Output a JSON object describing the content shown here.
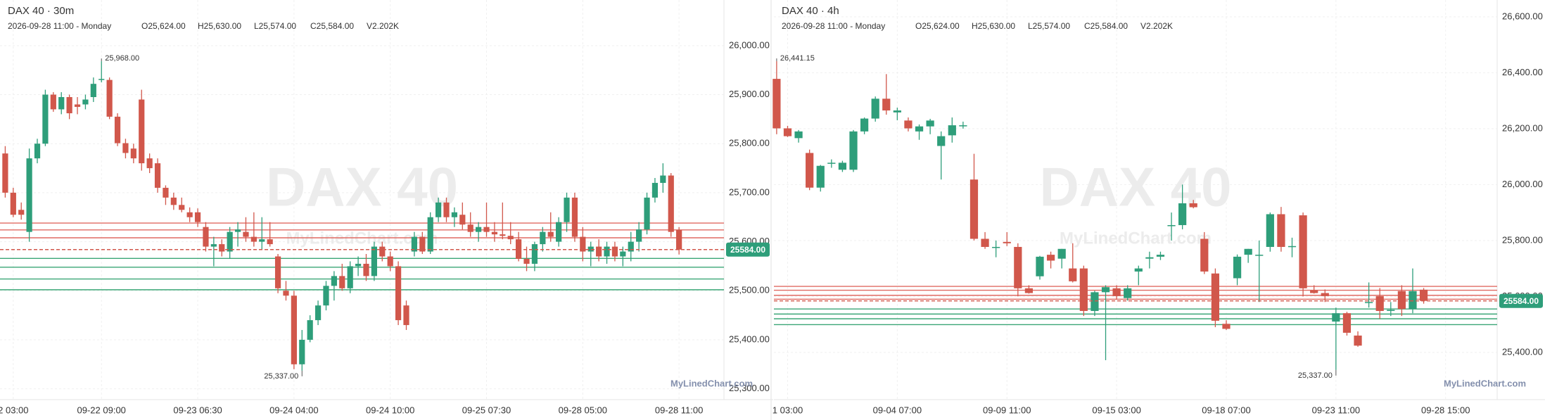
{
  "chart_data": [
    {
      "type": "candlestick",
      "title": "DAX 40 · 30m",
      "info": [
        "2026-09-28 11:00 - Monday",
        "O25,624.00",
        "H25,630.00",
        "L25,574.00",
        "C25,584.00",
        "V2.202K"
      ],
      "watermark": [
        "DAX 40",
        "MyLinedChart.com"
      ],
      "brand": "MyLinedChart.com",
      "up_color": "#2e9e7a",
      "down_color": "#d1574b",
      "xlim": [
        -0.65,
        89.6
      ],
      "ylim": [
        25278,
        26093
      ],
      "xticks": [
        {
          "value": 1,
          "label": "2 03:00"
        },
        {
          "value": 12,
          "label": "09-22 09:00"
        },
        {
          "value": 24,
          "label": "09-23 06:30"
        },
        {
          "value": 36,
          "label": "09-24 04:00"
        },
        {
          "value": 48,
          "label": "09-24 10:00"
        },
        {
          "value": 60,
          "label": "09-25 07:30"
        },
        {
          "value": 72,
          "label": "09-28 05:00"
        },
        {
          "value": 84,
          "label": "09-28 11:00"
        }
      ],
      "yticks": [
        {
          "value": 25300,
          "label": "25,300.00"
        },
        {
          "value": 25400,
          "label": "25,400.00"
        },
        {
          "value": 25500,
          "label": "25,500.00"
        },
        {
          "value": 25600,
          "label": "25,600.00"
        },
        {
          "value": 25700,
          "label": "25,700.00"
        },
        {
          "value": 25800,
          "label": "25,800.00"
        },
        {
          "value": 25900,
          "label": "25,900.00"
        },
        {
          "value": 26000,
          "label": "26,000.00"
        }
      ],
      "grid": true,
      "resistance": [
        25638,
        25624,
        25608
      ],
      "resistance_color": "#e06a62",
      "support": [
        25566,
        25548,
        25524,
        25502
      ],
      "support_color": "#3aa676",
      "last_price": {
        "value": 25584,
        "label": "25584.00"
      },
      "annotations": [
        {
          "candle": 12,
          "value": 25968,
          "label": "25,968.00"
        },
        {
          "candle": 37,
          "value": 25337,
          "label": "25,337.00"
        }
      ],
      "ohlc": [
        [
          25780,
          25795,
          25690,
          25700
        ],
        [
          25700,
          25710,
          25650,
          25655
        ],
        [
          25665,
          25680,
          25645,
          25655
        ],
        [
          25620,
          25790,
          25600,
          25770
        ],
        [
          25770,
          25810,
          25760,
          25800
        ],
        [
          25800,
          25910,
          25795,
          25900
        ],
        [
          25900,
          25905,
          25865,
          25870
        ],
        [
          25870,
          25905,
          25860,
          25895
        ],
        [
          25895,
          25900,
          25850,
          25862
        ],
        [
          25880,
          25895,
          25860,
          25875
        ],
        [
          25880,
          25900,
          25870,
          25890
        ],
        [
          25895,
          25935,
          25885,
          25922
        ],
        [
          25930,
          25968,
          25925,
          25932
        ],
        [
          25930,
          25935,
          25850,
          25855
        ],
        [
          25855,
          25862,
          25795,
          25801
        ],
        [
          25801,
          25810,
          25770,
          25781
        ],
        [
          25790,
          25800,
          25760,
          25770
        ],
        [
          25890,
          25910,
          25745,
          25760
        ],
        [
          25770,
          25780,
          25740,
          25750
        ],
        [
          25760,
          25770,
          25700,
          25710
        ],
        [
          25710,
          25715,
          25675,
          25690
        ],
        [
          25690,
          25700,
          25665,
          25675
        ],
        [
          25675,
          25690,
          25660,
          25665
        ],
        [
          25660,
          25670,
          25640,
          25650
        ],
        [
          25660,
          25668,
          25630,
          25640
        ],
        [
          25630,
          25640,
          25580,
          25590
        ],
        [
          25590,
          25610,
          25550,
          25595
        ],
        [
          25595,
          25605,
          25570,
          25580
        ],
        [
          25580,
          25630,
          25565,
          25620
        ],
        [
          25620,
          25640,
          25590,
          25625
        ],
        [
          25620,
          25650,
          25600,
          25610
        ],
        [
          25610,
          25660,
          25590,
          25600
        ],
        [
          25600,
          25650,
          25585,
          25605
        ],
        [
          25605,
          25640,
          25590,
          25595
        ],
        [
          25570,
          25575,
          25495,
          25505
        ],
        [
          25500,
          25520,
          25480,
          25490
        ],
        [
          25490,
          25500,
          25340,
          25350
        ],
        [
          25350,
          25420,
          25337,
          25400
        ],
        [
          25400,
          25450,
          25395,
          25440
        ],
        [
          25440,
          25480,
          25430,
          25470
        ],
        [
          25470,
          25520,
          25460,
          25510
        ],
        [
          25510,
          25540,
          25480,
          25530
        ],
        [
          25530,
          25555,
          25500,
          25505
        ],
        [
          25505,
          25560,
          25495,
          25550
        ],
        [
          25550,
          25570,
          25530,
          25555
        ],
        [
          25555,
          25575,
          25520,
          25530
        ],
        [
          25530,
          25600,
          25520,
          25590
        ],
        [
          25590,
          25600,
          25560,
          25570
        ],
        [
          25570,
          25580,
          25540,
          25550
        ],
        [
          25550,
          25560,
          25430,
          25440
        ],
        [
          25470,
          25480,
          25420,
          25430
        ],
        [
          25580,
          25620,
          25570,
          25610
        ],
        [
          25610,
          25620,
          25575,
          25580
        ],
        [
          25580,
          25660,
          25575,
          25650
        ],
        [
          25650,
          25690,
          25640,
          25680
        ],
        [
          25680,
          25690,
          25640,
          25650
        ],
        [
          25650,
          25670,
          25630,
          25660
        ],
        [
          25655,
          25680,
          25625,
          25635
        ],
        [
          25635,
          25660,
          25610,
          25620
        ],
        [
          25620,
          25640,
          25600,
          25630
        ],
        [
          25630,
          25680,
          25610,
          25620
        ],
        [
          25620,
          25640,
          25600,
          25615
        ],
        [
          25615,
          25680,
          25605,
          25612
        ],
        [
          25612,
          25640,
          25595,
          25605
        ],
        [
          25605,
          25620,
          25560,
          25565
        ],
        [
          25565,
          25590,
          25540,
          25555
        ],
        [
          25555,
          25600,
          25540,
          25595
        ],
        [
          25595,
          25630,
          25580,
          25620
        ],
        [
          25620,
          25660,
          25600,
          25610
        ],
        [
          25600,
          25650,
          25590,
          25640
        ],
        [
          25640,
          25700,
          25620,
          25690
        ],
        [
          25690,
          25700,
          25600,
          25610
        ],
        [
          25610,
          25630,
          25560,
          25580
        ],
        [
          25580,
          25600,
          25550,
          25590
        ],
        [
          25590,
          25605,
          25560,
          25570
        ],
        [
          25570,
          25600,
          25555,
          25590
        ],
        [
          25590,
          25600,
          25560,
          25570
        ],
        [
          25570,
          25590,
          25550,
          25580
        ],
        [
          25580,
          25620,
          25560,
          25600
        ],
        [
          25600,
          25640,
          25580,
          25625
        ],
        [
          25625,
          25700,
          25615,
          25690
        ],
        [
          25690,
          25730,
          25680,
          25720
        ],
        [
          25720,
          25760,
          25700,
          25735
        ],
        [
          25735,
          25740,
          25610,
          25620
        ],
        [
          25624,
          25630,
          25574,
          25584
        ]
      ]
    },
    {
      "type": "candlestick",
      "title": "DAX 40 · 4h",
      "info": [
        "2026-09-28 11:00 - Monday",
        "O25,624.00",
        "H25,630.00",
        "L25,574.00",
        "C25,584.00",
        "V2.202K"
      ],
      "watermark": [
        "DAX 40",
        "MyLinedChart.com"
      ],
      "brand": "MyLinedChart.com",
      "up_color": "#2e9e7a",
      "down_color": "#d1574b",
      "xlim": [
        -0.25,
        65.7
      ],
      "ylim": [
        25231,
        26660
      ],
      "xticks": [
        {
          "value": 1,
          "label": "1 03:00"
        },
        {
          "value": 11,
          "label": "09-04 07:00"
        },
        {
          "value": 21,
          "label": "09-09 11:00"
        },
        {
          "value": 31,
          "label": "09-15 03:00"
        },
        {
          "value": 41,
          "label": "09-18 07:00"
        },
        {
          "value": 51,
          "label": "09-23 11:00"
        },
        {
          "value": 61,
          "label": "09-28 15:00"
        }
      ],
      "yticks": [
        {
          "value": 25400,
          "label": "25,400.00"
        },
        {
          "value": 25600,
          "label": "25,600.00"
        },
        {
          "value": 25800,
          "label": "25,800.00"
        },
        {
          "value": 26000,
          "label": "26,000.00"
        },
        {
          "value": 26200,
          "label": "26,200.00"
        },
        {
          "value": 26400,
          "label": "26,400.00"
        },
        {
          "value": 26600,
          "label": "26,600.00"
        }
      ],
      "grid": true,
      "resistance": [
        25636,
        25622,
        25604,
        25590
      ],
      "resistance_color": "#e06a62",
      "support": [
        25555,
        25537,
        25520,
        25499
      ],
      "support_color": "#3aa676",
      "last_price": {
        "value": 25584,
        "label": "25584.00"
      },
      "annotations": [
        {
          "candle": 0,
          "value": 26441,
          "label": "26,441.15"
        },
        {
          "candle": 51,
          "value": 25337,
          "label": "25,337.00"
        }
      ],
      "ohlc": [
        [
          26378,
          26441,
          26180,
          26201
        ],
        [
          26201,
          26210,
          26170,
          26173
        ],
        [
          26166,
          26195,
          26150,
          26190
        ],
        [
          26113,
          26125,
          25980,
          25989
        ],
        [
          25989,
          26070,
          25975,
          26067
        ],
        [
          26078,
          26090,
          26060,
          26078
        ],
        [
          26053,
          26085,
          26045,
          26078
        ],
        [
          26053,
          26195,
          26045,
          26190
        ],
        [
          26190,
          26240,
          26180,
          26236
        ],
        [
          26236,
          26315,
          26225,
          26307
        ],
        [
          26307,
          26395,
          26250,
          26265
        ],
        [
          26258,
          26275,
          26230,
          26265
        ],
        [
          26229,
          26240,
          26190,
          26201
        ],
        [
          26190,
          26215,
          26160,
          26208
        ],
        [
          26208,
          26235,
          26180,
          26229
        ],
        [
          26138,
          26190,
          26018,
          26173
        ],
        [
          26176,
          26240,
          26150,
          26212
        ],
        [
          26212,
          26225,
          26200,
          26212
        ],
        [
          26018,
          26110,
          25800,
          25806
        ],
        [
          25806,
          25830,
          25770,
          25777
        ],
        [
          25777,
          25800,
          25740,
          25777
        ],
        [
          25795,
          25830,
          25780,
          25790
        ],
        [
          25777,
          25790,
          25600,
          25629
        ],
        [
          25629,
          25640,
          25610,
          25612
        ],
        [
          25672,
          25745,
          25660,
          25742
        ],
        [
          25749,
          25760,
          25700,
          25728
        ],
        [
          25735,
          25770,
          25700,
          25770
        ],
        [
          25700,
          25790,
          25650,
          25654
        ],
        [
          25700,
          25710,
          25530,
          25548
        ],
        [
          25548,
          25620,
          25530,
          25615
        ],
        [
          25615,
          25640,
          25372,
          25633
        ],
        [
          25629,
          25640,
          25590,
          25601
        ],
        [
          25594,
          25640,
          25585,
          25629
        ],
        [
          25689,
          25710,
          25640,
          25700
        ],
        [
          25735,
          25760,
          25700,
          25740
        ],
        [
          25742,
          25760,
          25730,
          25749
        ],
        [
          25855,
          25900,
          25800,
          25855
        ],
        [
          25855,
          26000,
          25840,
          25933
        ],
        [
          25933,
          25945,
          25915,
          25919
        ],
        [
          25806,
          25830,
          25680,
          25689
        ],
        [
          25682,
          25700,
          25490,
          25513
        ],
        [
          25502,
          25515,
          25480,
          25484
        ],
        [
          25665,
          25750,
          25640,
          25742
        ],
        [
          25749,
          25770,
          25720,
          25770
        ],
        [
          25749,
          25800,
          25580,
          25749
        ],
        [
          25777,
          25900,
          25760,
          25894
        ],
        [
          25894,
          25920,
          25760,
          25777
        ],
        [
          25780,
          25810,
          25740,
          25780
        ],
        [
          25890,
          25900,
          25600,
          25629
        ],
        [
          25622,
          25640,
          25610,
          25612
        ],
        [
          25612,
          25625,
          25580,
          25601
        ],
        [
          25510,
          25560,
          25337,
          25540
        ],
        [
          25540,
          25545,
          25460,
          25470
        ],
        [
          25460,
          25475,
          25420,
          25424
        ],
        [
          25580,
          25650,
          25560,
          25580
        ],
        [
          25601,
          25630,
          25520,
          25548
        ],
        [
          25548,
          25580,
          25530,
          25552
        ],
        [
          25619,
          25640,
          25530,
          25555
        ],
        [
          25555,
          25700,
          25540,
          25619
        ],
        [
          25624,
          25630,
          25574,
          25584
        ]
      ]
    }
  ]
}
